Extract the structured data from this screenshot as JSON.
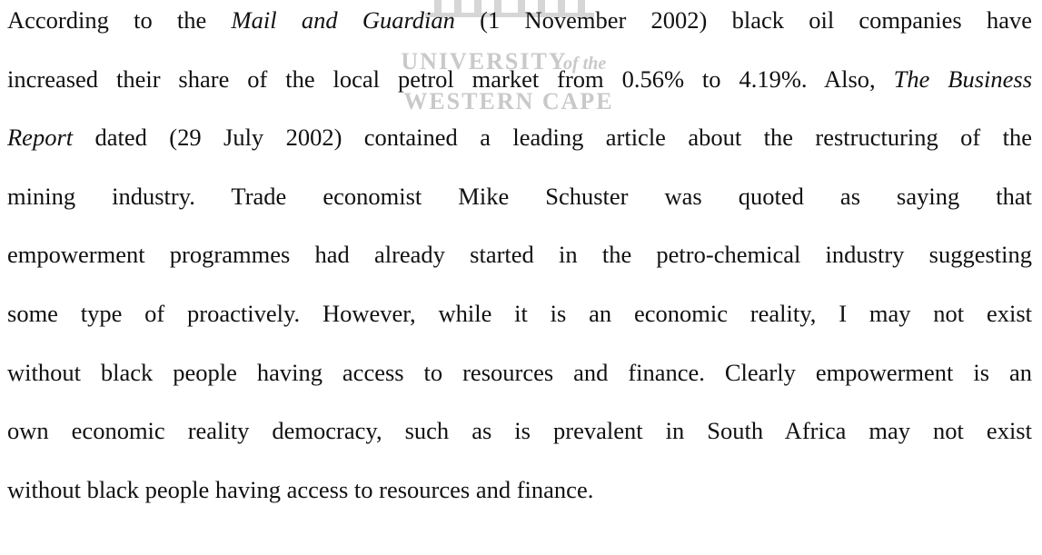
{
  "watermark": {
    "line1": "UNIVERSITY",
    "line1_small": "of the",
    "line2": "WESTERN CAPE"
  },
  "paragraph": {
    "lines": [
      {
        "runs": [
          {
            "text": "According to the ",
            "italic": false
          },
          {
            "text": "Mail and Guardian",
            "italic": true
          },
          {
            "text": " (1 November 2002) black oil companies have",
            "italic": false
          }
        ]
      },
      {
        "runs": [
          {
            "text": "increased their share of the local petrol market from 0.56% to 4.19%. Also, ",
            "italic": false
          },
          {
            "text": "The Business",
            "italic": true
          }
        ]
      },
      {
        "runs": [
          {
            "text": "Report",
            "italic": true
          },
          {
            "text": " dated (29 July 2002) contained a leading article about the restructuring of the",
            "italic": false
          }
        ]
      },
      {
        "runs": [
          {
            "text": "mining industry. Trade economist Mike Schuster was quoted as saying that",
            "italic": false
          }
        ]
      },
      {
        "runs": [
          {
            "text": "empowerment programmes had already started in the petro-chemical industry suggesting",
            "italic": false
          }
        ]
      },
      {
        "runs": [
          {
            "text": "some type of proactively. However, while it is an economic reality, I may not exist",
            "italic": false
          }
        ]
      },
      {
        "runs": [
          {
            "text": "without black people having access to resources and finance. Clearly empowerment is an",
            "italic": false
          }
        ]
      },
      {
        "runs": [
          {
            "text": "own economic reality democracy, such as is prevalent in South Africa may not exist",
            "italic": false
          }
        ]
      },
      {
        "runs": [
          {
            "text": "without black people having access to resources and finance.",
            "italic": false
          }
        ]
      }
    ]
  }
}
